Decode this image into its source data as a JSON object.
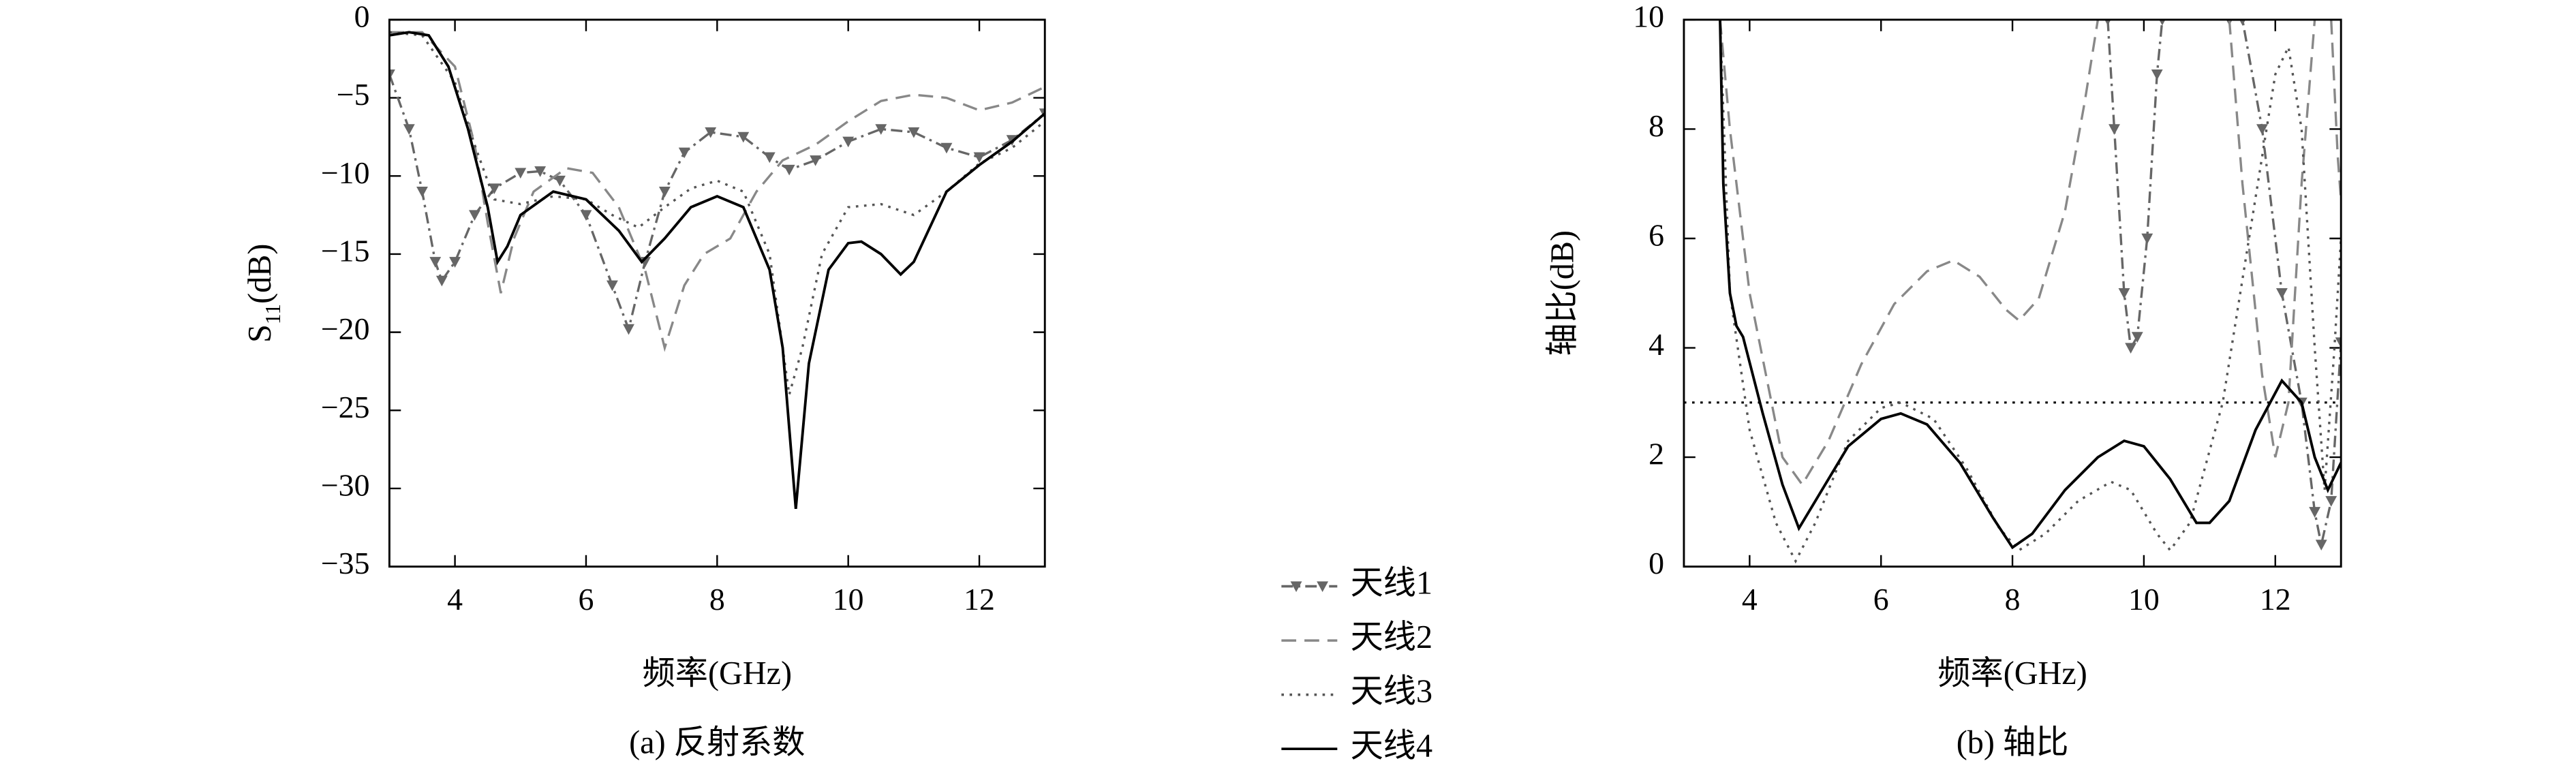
{
  "chart_data": [
    {
      "type": "line",
      "caption": "(a) 反射系数",
      "xlabel": "频率(GHz)",
      "ylabel": [
        "S",
        "11",
        "(dB)"
      ],
      "xlim": [
        3,
        13
      ],
      "ylim": [
        -35,
        0
      ],
      "xticks": [
        4,
        6,
        8,
        10,
        12
      ],
      "yticks": [
        0,
        {
          "value": -5,
          "label": "−5"
        },
        {
          "value": -10,
          "label": "−10"
        },
        {
          "value": -15,
          "label": "−15"
        },
        {
          "value": -20,
          "label": "−20"
        },
        {
          "value": -25,
          "label": "−25"
        },
        {
          "value": -30,
          "label": "−30"
        },
        {
          "value": -35,
          "label": "−35"
        }
      ],
      "series": [
        {
          "name": "天线1",
          "color": "#666666",
          "style": "dashdot",
          "marker": "triangle",
          "x": [
            3.0,
            3.3,
            3.5,
            3.7,
            3.8,
            4.0,
            4.3,
            4.6,
            5.0,
            5.3,
            5.6,
            6.0,
            6.4,
            6.65,
            6.9,
            7.2,
            7.5,
            7.9,
            8.4,
            8.8,
            9.1,
            9.5,
            10.0,
            10.5,
            11.0,
            11.5,
            12.0,
            12.5,
            13.0
          ],
          "values": [
            -3.5,
            -7,
            -11,
            -15.5,
            -16.7,
            -15.5,
            -12.5,
            -10.8,
            -9.8,
            -9.7,
            -10.3,
            -12.5,
            -17,
            -19.8,
            -15.5,
            -11,
            -8.5,
            -7.2,
            -7.5,
            -8.8,
            -9.6,
            -9,
            -7.8,
            -7,
            -7.2,
            -8.2,
            -8.8,
            -7.7,
            -6
          ]
        },
        {
          "name": "天线2",
          "color": "#888888",
          "style": "dash",
          "x": [
            3.0,
            3.5,
            4.0,
            4.3,
            4.5,
            4.7,
            4.9,
            5.2,
            5.7,
            6.1,
            6.5,
            6.9,
            7.2,
            7.5,
            7.8,
            8.2,
            8.6,
            9.0,
            9.5,
            10.0,
            10.5,
            11.0,
            11.5,
            12.0,
            12.5,
            13.0
          ],
          "values": [
            -0.8,
            -0.8,
            -3,
            -8,
            -13,
            -17.5,
            -14,
            -11,
            -9.5,
            -9.8,
            -12,
            -16,
            -21,
            -17,
            -15,
            -14,
            -11,
            -9,
            -8,
            -6.5,
            -5.2,
            -4.8,
            -5,
            -5.8,
            -5.3,
            -4.3
          ]
        },
        {
          "name": "天线3",
          "color": "#555555",
          "style": "dot",
          "x": [
            3.0,
            3.5,
            4.0,
            4.3,
            4.6,
            5.0,
            5.5,
            6.0,
            6.4,
            6.8,
            7.2,
            7.6,
            8.0,
            8.4,
            8.8,
            9.1,
            9.3,
            9.6,
            10.0,
            10.5,
            11.0,
            11.5,
            12.0,
            12.5,
            13.0
          ],
          "values": [
            -0.8,
            -1,
            -4,
            -8,
            -11.5,
            -11.8,
            -11.3,
            -11.5,
            -12.5,
            -13.3,
            -12,
            -10.8,
            -10.3,
            -11,
            -15,
            -24,
            -21,
            -15,
            -12,
            -11.8,
            -12.5,
            -11,
            -9.2,
            -8.2,
            -6.5
          ]
        },
        {
          "name": "天线4",
          "color": "#000000",
          "style": "solid",
          "x": [
            3.0,
            3.3,
            3.6,
            3.9,
            4.2,
            4.5,
            4.65,
            4.8,
            5.0,
            5.5,
            6.0,
            6.5,
            6.85,
            7.2,
            7.6,
            8.0,
            8.4,
            8.8,
            9.0,
            9.2,
            9.4,
            9.7,
            10.0,
            10.2,
            10.5,
            10.8,
            11.0,
            11.5,
            12.0,
            12.5,
            13.0
          ],
          "values": [
            -1,
            -0.8,
            -1,
            -3,
            -7,
            -12,
            -15.5,
            -14.5,
            -12.5,
            -11,
            -11.5,
            -13.5,
            -15.5,
            -14,
            -12,
            -11.3,
            -12,
            -16,
            -21,
            -31.3,
            -22,
            -16,
            -14.3,
            -14.2,
            -15,
            -16.3,
            -15.5,
            -11,
            -9.3,
            -7.8,
            -6
          ]
        }
      ]
    },
    {
      "type": "line",
      "caption": "(b) 轴比",
      "xlabel": "频率(GHz)",
      "ylabel": [
        "轴比(dB)"
      ],
      "xlim": [
        3,
        13
      ],
      "ylim": [
        0,
        10
      ],
      "xticks": [
        4,
        6,
        8,
        10,
        12
      ],
      "yticks": [
        0,
        2,
        4,
        6,
        8,
        10
      ],
      "reference_line": 3,
      "series": [
        {
          "name": "天线1",
          "color": "#666666",
          "style": "dashdot",
          "marker": "triangle",
          "x": [
            9.45,
            9.55,
            9.7,
            9.8,
            9.9,
            10.05,
            10.2,
            10.28,
            null,
            11.3,
            11.5,
            11.8,
            12.1,
            12.4,
            12.6,
            12.7,
            12.85,
            13.0
          ],
          "values": [
            10,
            8,
            5,
            4.0,
            4.2,
            6,
            9,
            10,
            null,
            10,
            10,
            8,
            5,
            3,
            1,
            0.4,
            1.2,
            4.1
          ]
        },
        {
          "name": "天线2",
          "color": "#888888",
          "style": "dash",
          "x": [
            3.55,
            3.7,
            4.0,
            4.5,
            4.8,
            5.2,
            5.7,
            6.2,
            6.7,
            7.1,
            7.5,
            7.9,
            8.1,
            8.4,
            8.8,
            9.1,
            9.3,
            null,
            11.3,
            11.5,
            11.8,
            12.0,
            12.2,
            12.4,
            12.6,
            null,
            12.85,
            12.95,
            13.0
          ],
          "values": [
            10,
            8,
            5,
            2,
            1.5,
            2.3,
            3.7,
            4.8,
            5.4,
            5.6,
            5.3,
            4.7,
            4.5,
            4.9,
            6.5,
            8.5,
            10,
            null,
            10,
            7,
            3.5,
            2.0,
            3,
            7,
            10,
            null,
            10,
            7.5,
            6.7
          ]
        },
        {
          "name": "天线3",
          "color": "#555555",
          "style": "dot",
          "x": [
            3.55,
            3.7,
            4.0,
            4.4,
            4.7,
            5.0,
            5.5,
            6.0,
            6.3,
            6.8,
            7.3,
            7.8,
            8.1,
            8.5,
            9.0,
            9.5,
            9.8,
            10.2,
            10.4,
            10.7,
            11.2,
            11.6,
            12.0,
            12.2,
            12.4,
            12.6,
            12.75,
            12.9,
            13.0
          ],
          "values": [
            10,
            5,
            2.5,
            0.8,
            0.1,
            0.8,
            2.3,
            2.9,
            3.0,
            2.7,
            1.8,
            0.7,
            0.3,
            0.6,
            1.2,
            1.55,
            1.4,
            0.6,
            0.3,
            0.8,
            3,
            6,
            9,
            9.5,
            8,
            4,
            1.4,
            4,
            6
          ]
        },
        {
          "name": "天线4",
          "color": "#000000",
          "style": "solid",
          "x": [
            3.55,
            3.6,
            3.7,
            3.8,
            3.9,
            4.2,
            4.5,
            4.75,
            5.0,
            5.5,
            6.0,
            6.3,
            6.7,
            7.2,
            7.7,
            8.0,
            8.3,
            8.8,
            9.3,
            9.7,
            10.0,
            10.4,
            10.8,
            11.0,
            11.3,
            11.7,
            12.1,
            12.4,
            12.6,
            12.8,
            13.0
          ],
          "values": [
            10,
            7,
            5,
            4.4,
            4.2,
            2.8,
            1.5,
            0.7,
            1.2,
            2.2,
            2.7,
            2.8,
            2.6,
            1.9,
            0.9,
            0.35,
            0.6,
            1.4,
            2.0,
            2.3,
            2.2,
            1.6,
            0.8,
            0.8,
            1.2,
            2.5,
            3.4,
            3.0,
            2.0,
            1.4,
            1.9
          ]
        }
      ]
    }
  ]
}
